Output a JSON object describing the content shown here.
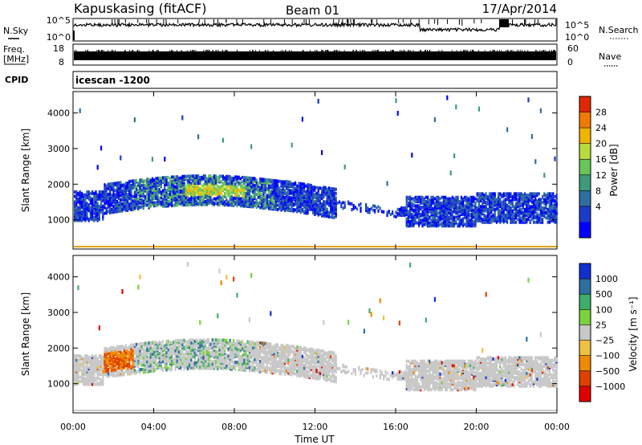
{
  "header": {
    "station": "Kapuskasing (fitACF)",
    "beam": "Beam 01",
    "date": "17/Apr/2014"
  },
  "noise_panel": {
    "left_label": "N.Sky",
    "right_label": "N.Search",
    "left_ticks": [
      "10^5",
      "10^0"
    ],
    "right_ticks": [
      "10^5",
      "10^0"
    ]
  },
  "freq_panel": {
    "left_label_top": "Freq.",
    "left_label_bottom": "[MHz]",
    "right_label": "Nave",
    "left_ticks": [
      "18",
      "8"
    ],
    "right_ticks": [
      "60",
      "0"
    ]
  },
  "cpid_panel": {
    "label": "CPID",
    "text": "icescan -1200"
  },
  "chart_data": [
    {
      "type": "heatmap",
      "name": "power",
      "ylabel": "Slant Range [km]",
      "ylim": [
        180,
        4600
      ],
      "yticks": [
        "1000",
        "2000",
        "3000",
        "4000"
      ],
      "ytick_values": [
        1000,
        2000,
        3000,
        4000
      ],
      "xlim": [
        0,
        24
      ],
      "colorbar": {
        "label": "Power [dB]",
        "range": [
          0,
          32
        ],
        "ticks": [
          "4",
          "8",
          "12",
          "16",
          "20",
          "24",
          "28"
        ],
        "tick_values": [
          4,
          8,
          12,
          16,
          20,
          24,
          28
        ],
        "colors": [
          "#0000ff",
          "#1c3cc8",
          "#2f6ea0",
          "#3f9a7c",
          "#69c45c",
          "#b8dc3c",
          "#f0b400",
          "#f07a00",
          "#e02800"
        ]
      }
    },
    {
      "type": "heatmap",
      "name": "velocity",
      "ylabel": "Slant Range [km]",
      "ylim": [
        180,
        4600
      ],
      "yticks": [
        "1000",
        "2000",
        "3000",
        "4000"
      ],
      "ytick_values": [
        1000,
        2000,
        3000,
        4000
      ],
      "xlim": [
        0,
        24
      ],
      "colorbar": {
        "label": "Velocity [m s⁻¹]",
        "ticks": [
          "1000",
          "500",
          "100",
          "25",
          "−25",
          "−100",
          "−500",
          "−1000"
        ],
        "colors": [
          "#1030d0",
          "#2f6ea0",
          "#3fae6a",
          "#7ad23c",
          "#c8c8c8",
          "#f0c040",
          "#f08a00",
          "#e04000",
          "#e00000"
        ]
      }
    }
  ],
  "x_axis": {
    "label": "Time UT",
    "ticks": [
      "00:00",
      "04:00",
      "08:00",
      "12:00",
      "16:00",
      "20:00",
      "00:00"
    ],
    "tick_hours": [
      0,
      4,
      8,
      12,
      16,
      20,
      24
    ]
  }
}
